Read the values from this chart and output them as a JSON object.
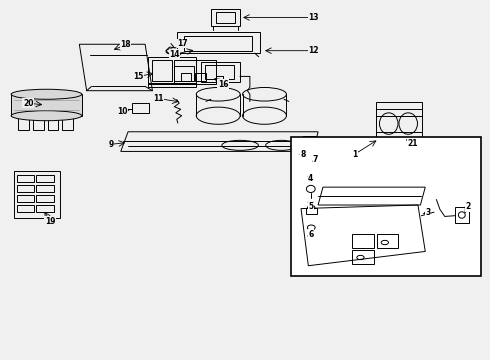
{
  "bg_color": "#f0f0f0",
  "label_color": "#000000",
  "line_color": "#000000",
  "inset_bg": "#ffffff"
}
